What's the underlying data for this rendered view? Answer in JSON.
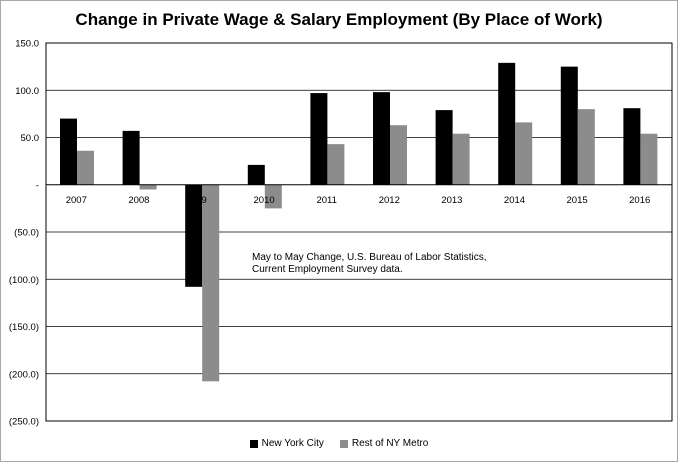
{
  "chart_data": {
    "type": "bar",
    "title": "Change in Private Wage & Salary Employment (By Place of Work)",
    "categories": [
      "2007",
      "2008",
      "09",
      "2010",
      "2011",
      "2012",
      "2013",
      "2014",
      "2015",
      "2016"
    ],
    "series": [
      {
        "name": "New York City",
        "color": "#000000",
        "values": [
          70.0,
          57.0,
          -108.0,
          21.0,
          97.0,
          98.0,
          79.0,
          129.0,
          125.0,
          81.0
        ]
      },
      {
        "name": "Rest of NY Metro",
        "color": "#8c8c8c",
        "values": [
          36.0,
          -5.0,
          -208.0,
          -25.0,
          43.0,
          63.0,
          54.0,
          66.0,
          80.0,
          54.0
        ]
      }
    ],
    "ylim": [
      -250,
      150
    ],
    "yticks": [
      150,
      100,
      50,
      0,
      -50,
      -100,
      -150,
      -200,
      -250
    ],
    "ytick_labels": [
      "150.0",
      "100.0",
      "50.0",
      "-",
      "(50.0)",
      "(100.0)",
      "(150.0)",
      "(200.0)",
      "(250.0)"
    ],
    "grid": true,
    "legend_position": "bottom",
    "annotation": [
      "May to May Change, U.S. Bureau of Labor Statistics,",
      "Current Employment Survey data."
    ]
  }
}
